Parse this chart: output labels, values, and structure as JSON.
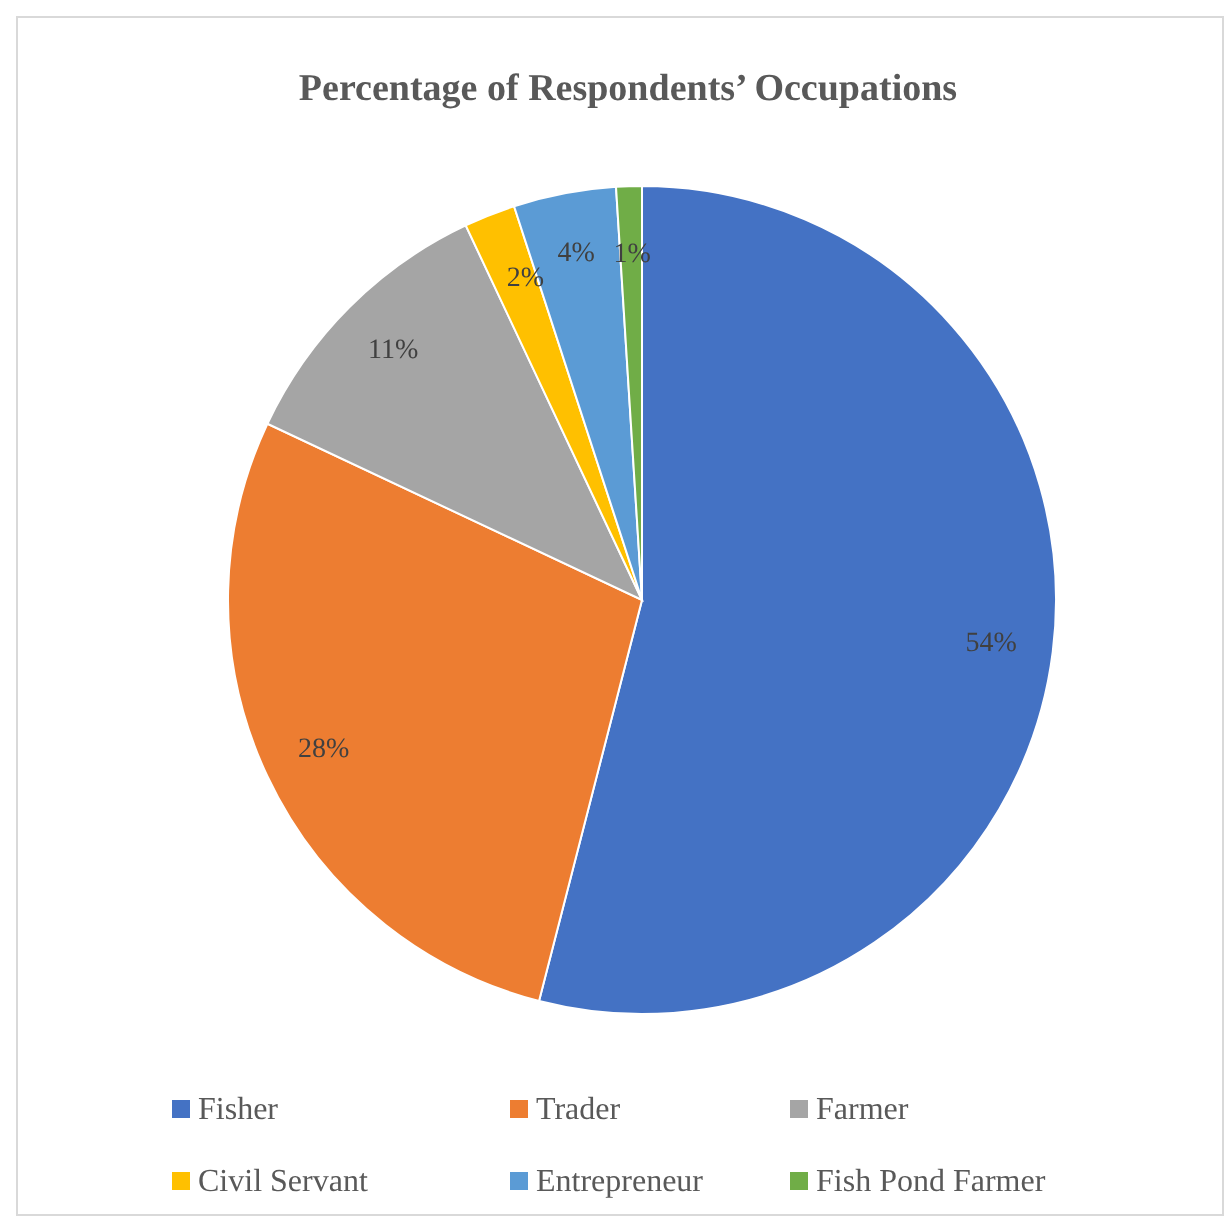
{
  "chart_data": {
    "type": "pie",
    "title": "Percentage of Respondents’ Occupations",
    "categories": [
      "Fisher",
      "Trader",
      "Farmer",
      "Civil Servant",
      "Entrepreneur",
      "Fish Pond Farmer"
    ],
    "values": [
      54,
      28,
      11,
      2,
      4,
      1
    ],
    "colors": [
      "#4472c4",
      "#ed7d31",
      "#a5a5a5",
      "#ffc000",
      "#5b9bd5",
      "#70ad47"
    ],
    "value_labels": [
      "54%",
      "28%",
      "11%",
      "2%",
      "4%",
      "1%"
    ],
    "legend": "bottom"
  }
}
